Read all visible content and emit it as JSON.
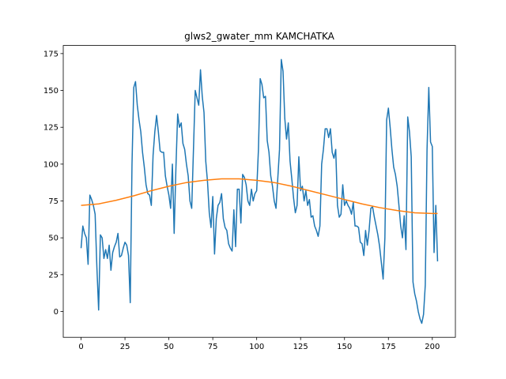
{
  "chart_data": {
    "type": "line",
    "title": "glws2_gwater_mm KAMCHATKA",
    "xlim": [
      -10.15,
      213.15
    ],
    "xticks": [
      0,
      25,
      50,
      75,
      100,
      125,
      150,
      175,
      200
    ],
    "ylim": [
      -17.5,
      180.5
    ],
    "yticks": [
      0,
      25,
      50,
      75,
      100,
      125,
      150,
      175
    ],
    "series": [
      {
        "color": "#1f77b4",
        "x": [
          0,
          1,
          2,
          3,
          4,
          5,
          6,
          7,
          8,
          9,
          10,
          11,
          12,
          13,
          14,
          15,
          16,
          17,
          18,
          19,
          20,
          21,
          22,
          23,
          24,
          25,
          26,
          27,
          28,
          29,
          30,
          31,
          32,
          33,
          34,
          35,
          36,
          37,
          38,
          39,
          40,
          41,
          42,
          43,
          44,
          45,
          46,
          47,
          48,
          49,
          50,
          51,
          52,
          53,
          54,
          55,
          56,
          57,
          58,
          59,
          60,
          61,
          62,
          63,
          64,
          65,
          66,
          67,
          68,
          69,
          70,
          71,
          72,
          73,
          74,
          75,
          76,
          77,
          78,
          79,
          80,
          81,
          82,
          83,
          84,
          85,
          86,
          87,
          88,
          89,
          90,
          91,
          92,
          93,
          94,
          95,
          96,
          97,
          98,
          99,
          100,
          101,
          102,
          103,
          104,
          105,
          106,
          107,
          108,
          109,
          110,
          111,
          112,
          113,
          114,
          115,
          116,
          117,
          118,
          119,
          120,
          121,
          122,
          123,
          124,
          125,
          126,
          127,
          128,
          129,
          130,
          131,
          132,
          133,
          134,
          135,
          136,
          137,
          138,
          139,
          140,
          141,
          142,
          143,
          144,
          145,
          146,
          147,
          148,
          149,
          150,
          151,
          152,
          153,
          154,
          155,
          156,
          157,
          158,
          159,
          160,
          161,
          162,
          163,
          164,
          165,
          166,
          167,
          168,
          169,
          170,
          171,
          172,
          173,
          174,
          175,
          176,
          177,
          178,
          179,
          180,
          181,
          182,
          183,
          184,
          185,
          186,
          187,
          188,
          189,
          190,
          191,
          192,
          193,
          194,
          195,
          196,
          197,
          198,
          199,
          200,
          201,
          202,
          203
        ],
        "values": [
          43,
          58,
          53,
          50,
          32,
          79,
          76,
          72,
          66,
          30,
          1,
          52,
          50,
          36,
          42,
          36,
          45,
          28,
          40,
          44,
          47,
          53,
          37,
          38,
          43,
          47,
          45,
          38,
          6,
          100,
          152,
          156,
          140,
          130,
          122,
          108,
          98,
          86,
          80,
          79,
          72,
          106,
          122,
          133,
          122,
          109,
          108,
          108,
          92,
          85,
          79,
          70,
          100,
          53,
          97,
          134,
          125,
          128,
          114,
          110,
          100,
          92,
          75,
          70,
          110,
          150,
          145,
          140,
          164,
          146,
          135,
          102,
          88,
          67,
          57,
          78,
          39,
          63,
          72,
          74,
          80,
          63,
          57,
          55,
          46,
          43,
          41,
          69,
          44,
          83,
          83,
          60,
          93,
          91,
          86,
          75,
          72,
          83,
          75,
          80,
          82,
          110,
          158,
          154,
          145,
          146,
          116,
          108,
          92,
          85,
          75,
          70,
          90,
          110,
          171,
          163,
          131,
          117,
          128,
          102,
          90,
          77,
          67,
          72,
          105,
          82,
          85,
          75,
          82,
          72,
          76,
          64,
          65,
          58,
          55,
          51,
          58,
          100,
          110,
          124,
          124,
          118,
          124,
          108,
          104,
          110,
          72,
          64,
          66,
          86,
          72,
          75,
          72,
          70,
          66,
          74,
          58,
          58,
          57,
          47,
          46,
          38,
          55,
          45,
          55,
          70,
          71,
          64,
          58,
          52,
          44,
          33,
          22,
          50,
          130,
          138,
          125,
          110,
          98,
          93,
          85,
          72,
          58,
          50,
          65,
          42,
          132,
          122,
          105,
          20,
          12,
          7,
          0,
          -5,
          -8,
          -2,
          18,
          110,
          152,
          115,
          112,
          40,
          72,
          34
        ]
      },
      {
        "color": "#ff7f0e",
        "x": [
          0,
          10,
          20,
          30,
          40,
          50,
          60,
          70,
          80,
          90,
          100,
          110,
          120,
          130,
          140,
          150,
          160,
          170,
          180,
          190,
          200,
          203
        ],
        "values": [
          72,
          73,
          75.5,
          78.5,
          82,
          85,
          87.5,
          89,
          90,
          90,
          89,
          87.5,
          85,
          82,
          79,
          76,
          73,
          70.5,
          68.5,
          67,
          66.5,
          66.5
        ]
      }
    ]
  }
}
